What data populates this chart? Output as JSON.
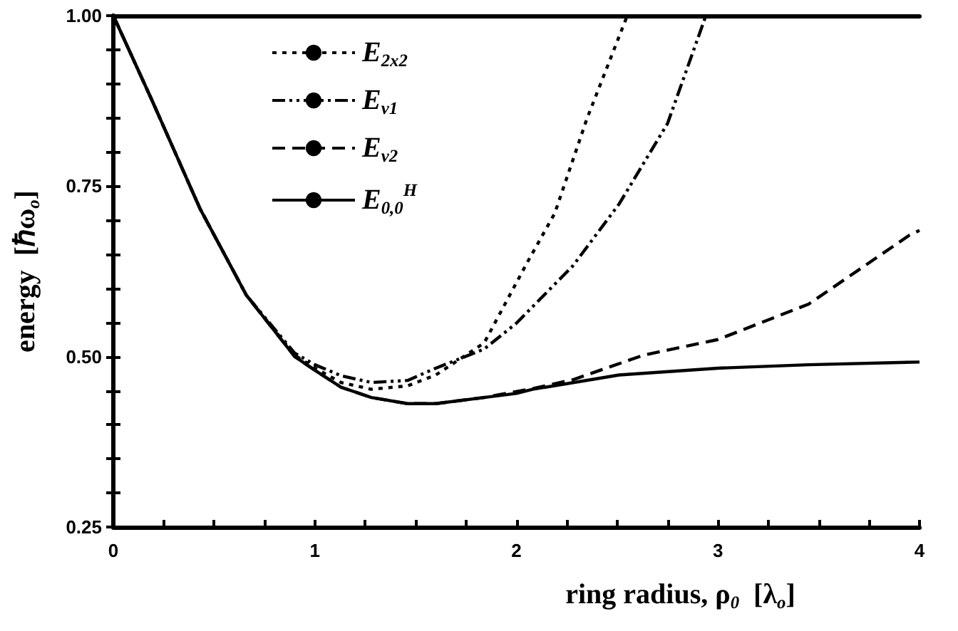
{
  "chart_data": {
    "type": "line",
    "xlabel": "ring radius, ρ$_{0}$  [λ$_{o}$]",
    "ylabel": "energy  [ℏω$_{o}$]",
    "xlim": [
      0,
      4
    ],
    "xticks": [
      0,
      {
        "value": 0.25,
        "label": null
      },
      {
        "value": 0.5,
        "label": null
      },
      {
        "value": 0.75,
        "label": null
      },
      1,
      {
        "value": 1.25,
        "label": null
      },
      {
        "value": 1.5,
        "label": null
      },
      {
        "value": 1.75,
        "label": null
      },
      2,
      {
        "value": 2.25,
        "label": null
      },
      {
        "value": 2.5,
        "label": null
      },
      {
        "value": 2.75,
        "label": null
      },
      3,
      {
        "value": 3.25,
        "label": null
      },
      {
        "value": 3.5,
        "label": null
      },
      {
        "value": 3.75,
        "label": null
      },
      4
    ],
    "ylim": [
      0.25,
      1.0
    ],
    "yticks": [
      {
        "value": 0.25,
        "label": "0.25"
      },
      {
        "value": 0.3,
        "label": null
      },
      {
        "value": 0.35,
        "label": null
      },
      {
        "value": 0.4,
        "label": null
      },
      {
        "value": 0.45,
        "label": null
      },
      {
        "value": 0.5,
        "label": "0.50"
      },
      {
        "value": 0.55,
        "label": null
      },
      {
        "value": 0.6,
        "label": null
      },
      {
        "value": 0.65,
        "label": null
      },
      {
        "value": 0.7,
        "label": null
      },
      {
        "value": 0.75,
        "label": "0.75"
      },
      {
        "value": 0.8,
        "label": null
      },
      {
        "value": 0.85,
        "label": null
      },
      {
        "value": 0.9,
        "label": null
      },
      {
        "value": 0.95,
        "label": null
      },
      {
        "value": 1.0,
        "label": "1.00"
      }
    ],
    "grid": false,
    "legend": "top left",
    "marker": "none",
    "series": [
      {
        "name": "E$_{2x2}$",
        "color": "#000000",
        "line_style": "dotted",
        "x": [
          0,
          0.19,
          0.43,
          0.66,
          0.9,
          1.0,
          1.13,
          1.28,
          1.46,
          1.6,
          1.84,
          2.05,
          2.19,
          2.35,
          2.55
        ],
        "values": [
          1.0,
          0.877,
          0.717,
          0.59,
          0.502,
          0.483,
          0.462,
          0.452,
          0.457,
          0.473,
          0.52,
          0.636,
          0.71,
          0.849,
          1.0
        ]
      },
      {
        "name": "E$_{ν1}$",
        "color": "#000000",
        "line_style": "dashdot",
        "x": [
          0,
          0.19,
          0.43,
          0.66,
          0.9,
          1.0,
          1.13,
          1.28,
          1.46,
          1.6,
          1.84,
          2.0,
          2.28,
          2.51,
          2.75,
          2.94
        ],
        "values": [
          1.0,
          0.877,
          0.717,
          0.59,
          0.505,
          0.488,
          0.472,
          0.462,
          0.465,
          0.483,
          0.511,
          0.549,
          0.633,
          0.724,
          0.842,
          1.0
        ]
      },
      {
        "name": "E$_{ν2}$",
        "color": "#000000",
        "line_style": "dashed",
        "x": [
          0,
          0.19,
          0.43,
          0.66,
          0.9,
          1.0,
          1.13,
          1.28,
          1.46,
          1.6,
          1.84,
          2.08,
          2.28,
          2.63,
          3.0,
          3.45,
          3.95,
          4.0
        ],
        "values": [
          1.0,
          0.877,
          0.717,
          0.59,
          0.5,
          0.48,
          0.455,
          0.44,
          0.431,
          0.431,
          0.44,
          0.453,
          0.466,
          0.502,
          0.525,
          0.577,
          0.678,
          0.685
        ]
      },
      {
        "name": "E$_{0,0}$$^{H}$",
        "color": "#000000",
        "line_style": "solid",
        "x": [
          0,
          0.19,
          0.43,
          0.66,
          0.9,
          1.0,
          1.13,
          1.28,
          1.46,
          1.6,
          1.84,
          2.0,
          2.08,
          2.51,
          3.0,
          3.45,
          4.0
        ],
        "values": [
          1.0,
          0.877,
          0.717,
          0.59,
          0.5,
          0.48,
          0.455,
          0.44,
          0.431,
          0.431,
          0.44,
          0.446,
          0.452,
          0.473,
          0.483,
          0.488,
          0.492
        ]
      }
    ]
  }
}
